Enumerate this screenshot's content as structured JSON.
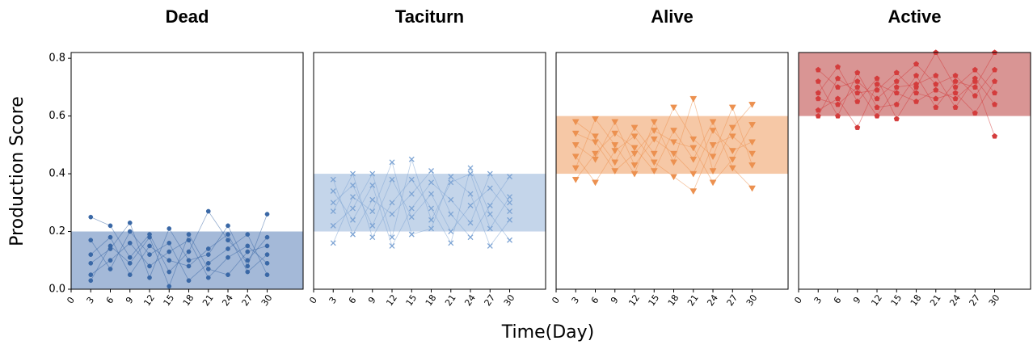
{
  "xlabel": "Time(Day)",
  "ylabel": "Production  Score",
  "chart_data": [
    {
      "type": "line",
      "title": "Dead",
      "marker": "circle",
      "color": "#3a68a6",
      "band": [
        0,
        0.2
      ],
      "band_color": "#a4b9d8",
      "x": [
        3,
        6,
        9,
        12,
        15,
        18,
        21,
        24,
        27,
        30
      ],
      "xlim": [
        0,
        35.5
      ],
      "xticks": [
        0,
        3,
        6,
        9,
        12,
        15,
        18,
        21,
        24,
        27,
        30
      ],
      "ylim": [
        0,
        0.82
      ],
      "yticks": [
        {
          "value": 0,
          "label": "0.0"
        },
        {
          "value": 0.2,
          "label": "0.2"
        },
        {
          "value": 0.4,
          "label": "0.4"
        },
        {
          "value": 0.6,
          "label": "0.6"
        },
        {
          "value": 0.8,
          "label": "0.8"
        }
      ],
      "series": [
        {
          "values": [
            0.12,
            0.18,
            0.05,
            0.15,
            0.1,
            0.08,
            0.14,
            0.19,
            0.06,
            0.12
          ]
        },
        {
          "values": [
            0.05,
            0.1,
            0.16,
            0.08,
            0.13,
            0.17,
            0.04,
            0.11,
            0.15,
            0.09
          ]
        },
        {
          "values": [
            0.25,
            0.22,
            0.11,
            0.19,
            0.06,
            0.13,
            0.27,
            0.17,
            0.1,
            0.18
          ]
        },
        {
          "values": [
            0.17,
            0.07,
            0.2,
            0.12,
            0.16,
            0.03,
            0.09,
            0.14,
            0.19,
            0.05
          ]
        },
        {
          "values": [
            0.09,
            0.14,
            0.23,
            0.04,
            0.21,
            0.1,
            0.12,
            0.22,
            0.08,
            0.26
          ]
        },
        {
          "values": [
            0.03,
            0.15,
            0.09,
            0.18,
            0.01,
            0.19,
            0.07,
            0.05,
            0.13,
            0.15
          ]
        }
      ]
    },
    {
      "type": "line",
      "title": "Taciturn",
      "marker": "x",
      "color": "#7da4d4",
      "band": [
        0.2,
        0.4
      ],
      "band_color": "#c4d5ea",
      "x": [
        3,
        6,
        9,
        12,
        15,
        18,
        21,
        24,
        27,
        30
      ],
      "xlim": [
        0,
        35.5
      ],
      "xticks": [
        0,
        3,
        6,
        9,
        12,
        15,
        18,
        21,
        24,
        27,
        30
      ],
      "ylim": [
        0,
        0.82
      ],
      "series": [
        {
          "values": [
            0.3,
            0.36,
            0.22,
            0.38,
            0.25,
            0.33,
            0.2,
            0.29,
            0.35,
            0.27
          ]
        },
        {
          "values": [
            0.22,
            0.28,
            0.4,
            0.18,
            0.45,
            0.24,
            0.37,
            0.4,
            0.21,
            0.32
          ]
        },
        {
          "values": [
            0.38,
            0.19,
            0.31,
            0.26,
            0.33,
            0.41,
            0.26,
            0.18,
            0.29,
            0.39
          ]
        },
        {
          "values": [
            0.16,
            0.32,
            0.27,
            0.44,
            0.19,
            0.21,
            0.39,
            0.33,
            0.15,
            0.24
          ]
        },
        {
          "values": [
            0.27,
            0.4,
            0.18,
            0.3,
            0.38,
            0.28,
            0.16,
            0.42,
            0.26,
            0.17
          ]
        },
        {
          "values": [
            0.34,
            0.24,
            0.36,
            0.15,
            0.28,
            0.37,
            0.31,
            0.23,
            0.4,
            0.3
          ]
        }
      ]
    },
    {
      "type": "line",
      "title": "Alive",
      "marker": "triangle",
      "color": "#ec9150",
      "band": [
        0.4,
        0.6
      ],
      "band_color": "#f6c8a6",
      "x": [
        3,
        6,
        9,
        12,
        15,
        18,
        21,
        24,
        27,
        30
      ],
      "xlim": [
        0,
        35.5
      ],
      "xticks": [
        0,
        3,
        6,
        9,
        12,
        15,
        18,
        21,
        24,
        27,
        30
      ],
      "ylim": [
        0,
        0.82
      ],
      "series": [
        {
          "values": [
            0.5,
            0.45,
            0.58,
            0.43,
            0.52,
            0.47,
            0.4,
            0.55,
            0.48,
            0.51
          ]
        },
        {
          "values": [
            0.58,
            0.53,
            0.44,
            0.56,
            0.47,
            0.63,
            0.52,
            0.46,
            0.63,
            0.43
          ]
        },
        {
          "values": [
            0.42,
            0.59,
            0.5,
            0.4,
            0.58,
            0.44,
            0.66,
            0.41,
            0.56,
            0.64
          ]
        },
        {
          "values": [
            0.38,
            0.47,
            0.54,
            0.49,
            0.41,
            0.55,
            0.45,
            0.58,
            0.42,
            0.35
          ]
        },
        {
          "values": [
            0.46,
            0.37,
            0.48,
            0.53,
            0.44,
            0.39,
            0.34,
            0.5,
            0.53,
            0.47
          ]
        },
        {
          "values": [
            0.54,
            0.51,
            0.41,
            0.47,
            0.55,
            0.51,
            0.49,
            0.37,
            0.45,
            0.57
          ]
        }
      ]
    },
    {
      "type": "line",
      "title": "Active",
      "marker": "pentagon",
      "color": "#d43c3c",
      "band": [
        0.6,
        0.82
      ],
      "band_color": "#d99594",
      "x": [
        3,
        6,
        9,
        12,
        15,
        18,
        21,
        24,
        27,
        30
      ],
      "xlim": [
        0,
        35.5
      ],
      "xticks": [
        0,
        3,
        6,
        9,
        12,
        15,
        18,
        21,
        24,
        27,
        30
      ],
      "ylim": [
        0,
        0.82
      ],
      "series": [
        {
          "values": [
            0.76,
            0.7,
            0.72,
            0.66,
            0.72,
            0.78,
            0.71,
            0.74,
            0.67,
            0.76
          ]
        },
        {
          "values": [
            0.68,
            0.77,
            0.65,
            0.73,
            0.59,
            0.7,
            0.82,
            0.7,
            0.76,
            0.68
          ]
        },
        {
          "values": [
            0.62,
            0.66,
            0.56,
            0.71,
            0.68,
            0.65,
            0.69,
            0.66,
            0.72,
            0.53
          ]
        },
        {
          "values": [
            0.72,
            0.6,
            0.75,
            0.63,
            0.64,
            0.74,
            0.63,
            0.72,
            0.7,
            0.82
          ]
        },
        {
          "values": [
            0.6,
            0.73,
            0.68,
            0.69,
            0.75,
            0.68,
            0.66,
            0.68,
            0.61,
            0.72
          ]
        },
        {
          "values": [
            0.66,
            0.64,
            0.7,
            0.6,
            0.7,
            0.71,
            0.74,
            0.63,
            0.73,
            0.64
          ]
        }
      ]
    }
  ]
}
